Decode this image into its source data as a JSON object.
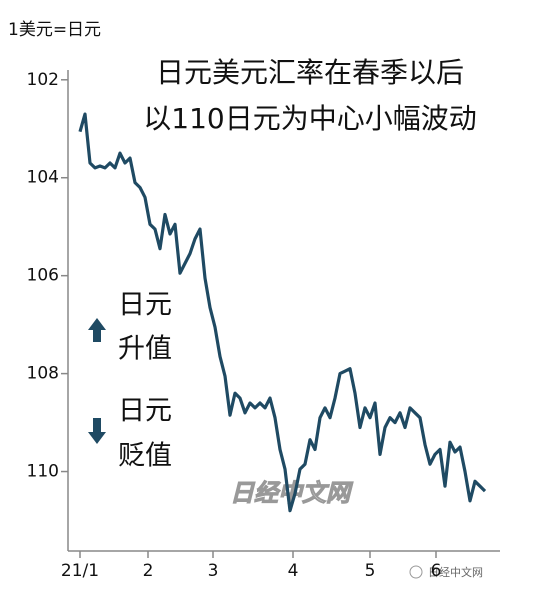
{
  "chart_data": {
    "type": "line",
    "unit_label": "1美元=日元",
    "title": [
      "日元美元汇率在春季以后",
      "以110日元为中心小幅波动"
    ],
    "annotations": [
      [
        "日元",
        "升值"
      ],
      [
        "日元",
        "贬值"
      ]
    ],
    "watermark": "日经中文网",
    "source_mark": "日经中文网",
    "x": [
      0,
      1,
      2,
      3,
      4,
      5,
      6,
      7,
      8,
      9,
      10,
      11,
      12,
      13,
      14,
      15,
      16,
      17,
      18,
      19,
      20,
      21,
      22,
      23,
      24,
      25,
      26,
      27,
      28,
      29,
      30,
      31,
      32,
      33,
      34,
      35,
      36,
      37,
      38,
      39,
      40,
      41,
      42,
      43,
      44,
      45,
      46,
      47,
      48,
      49,
      50,
      51,
      52,
      53,
      54,
      55,
      56,
      57,
      58,
      59,
      60,
      61,
      62,
      63,
      64,
      65,
      66,
      67,
      68,
      69,
      70,
      71,
      72,
      73,
      74,
      75,
      76,
      77,
      78,
      79,
      80,
      81
    ],
    "series": [
      {
        "color": "#1f4a63",
        "values": [
          103.06,
          102.7,
          103.7,
          103.8,
          103.76,
          103.8,
          103.7,
          103.8,
          103.5,
          103.7,
          103.6,
          104.1,
          104.2,
          104.4,
          104.95,
          105.05,
          105.45,
          104.75,
          105.15,
          104.95,
          105.95,
          105.75,
          105.55,
          105.25,
          105.05,
          106.05,
          106.65,
          107.05,
          107.65,
          108.05,
          108.85,
          108.4,
          108.5,
          108.8,
          108.6,
          108.7,
          108.6,
          108.7,
          108.5,
          108.9,
          109.55,
          109.95,
          110.8,
          110.45,
          109.95,
          109.85,
          109.35,
          109.55,
          108.9,
          108.7,
          108.9,
          108.5,
          108.0,
          107.95,
          107.9,
          108.4,
          109.1,
          108.7,
          108.9,
          108.6,
          109.65,
          109.1,
          108.9,
          109.0,
          108.8,
          109.1,
          108.7,
          108.8,
          108.9,
          109.45,
          109.85,
          109.65,
          109.55,
          110.3,
          109.4,
          109.6,
          109.5,
          110.0,
          110.6,
          110.2,
          110.3,
          110.4
        ]
      }
    ],
    "xlim": [
      -2.4,
      84
    ],
    "xticks": [
      {
        "value": 0,
        "label": "21/1"
      },
      {
        "value": 13.6,
        "label": "2"
      },
      {
        "value": 26.6,
        "label": "3"
      },
      {
        "value": 42.6,
        "label": "4"
      },
      {
        "value": 58,
        "label": "5"
      },
      {
        "value": 71.2,
        "label": "6"
      }
    ],
    "ylim": [
      101.8,
      111.5
    ],
    "y_inverted": true,
    "yticks": [
      102,
      104,
      106,
      108,
      110
    ]
  }
}
